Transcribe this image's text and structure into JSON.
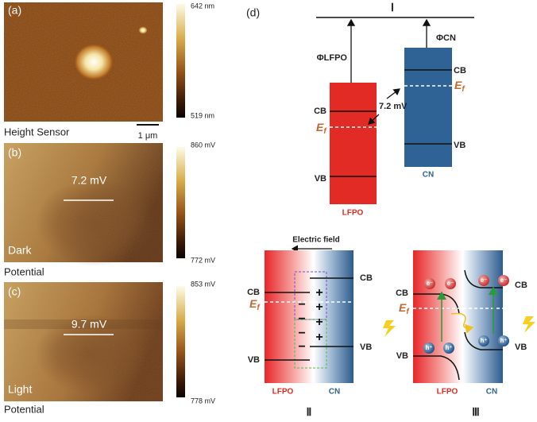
{
  "panel_a": {
    "label": "(a)",
    "scale_max": "642 nm",
    "scale_min": "519 nm",
    "caption": "Height Sensor",
    "scale_bar": "1 μm"
  },
  "panel_b": {
    "label": "(b)",
    "scale_max": "860 mV",
    "scale_min": "772 mV",
    "annotation": "7.2 mV",
    "condition": "Dark",
    "caption": "Potential"
  },
  "panel_c": {
    "label": "(c)",
    "scale_max": "853 mV",
    "scale_min": "778 mV",
    "annotation": "9.7 mV",
    "condition": "Light",
    "caption": "Potential"
  },
  "panel_d": {
    "label": "(d)",
    "diagram_1": {
      "numeral": "Ⅰ",
      "work_function_lfpo": "ΦLFPO",
      "work_function_cn": "ΦCN",
      "lfpo_cb": "CB",
      "lfpo_fermi": {
        "main": "E",
        "sub": "f"
      },
      "lfpo_vb": "VB",
      "cn_cb": "CB",
      "cn_fermi": {
        "main": "E",
        "sub": "f"
      },
      "cn_vb": "VB",
      "potential_difference": "7.2 mV",
      "lfpo_label": "LFPO",
      "cn_label": "CN"
    },
    "diagram_2": {
      "numeral": "Ⅱ",
      "field_label": "Electric field",
      "lfpo_cb": "CB",
      "lfpo_fermi": {
        "main": "E",
        "sub": "f"
      },
      "lfpo_vb": "VB",
      "cn_cb": "CB",
      "cn_vb": "VB",
      "plus_charges": [
        "+",
        "+",
        "+",
        "+"
      ],
      "minus_charges": [
        "−",
        "−",
        "−",
        "−"
      ],
      "lfpo_label": "LFPO",
      "cn_label": "CN"
    },
    "diagram_3": {
      "numeral": "Ⅲ",
      "lfpo_cb": "CB",
      "lfpo_fermi": {
        "main": "E",
        "sub": "f"
      },
      "lfpo_vb": "VB",
      "cn_cb": "CB",
      "cn_vb": "VB",
      "electrons": [
        "e⁻",
        "e⁻",
        "e⁻",
        "e⁻"
      ],
      "holes": [
        "h⁺",
        "h⁺",
        "h⁺",
        "h⁺"
      ],
      "lfpo_label": "LFPO",
      "cn_label": "CN"
    }
  }
}
